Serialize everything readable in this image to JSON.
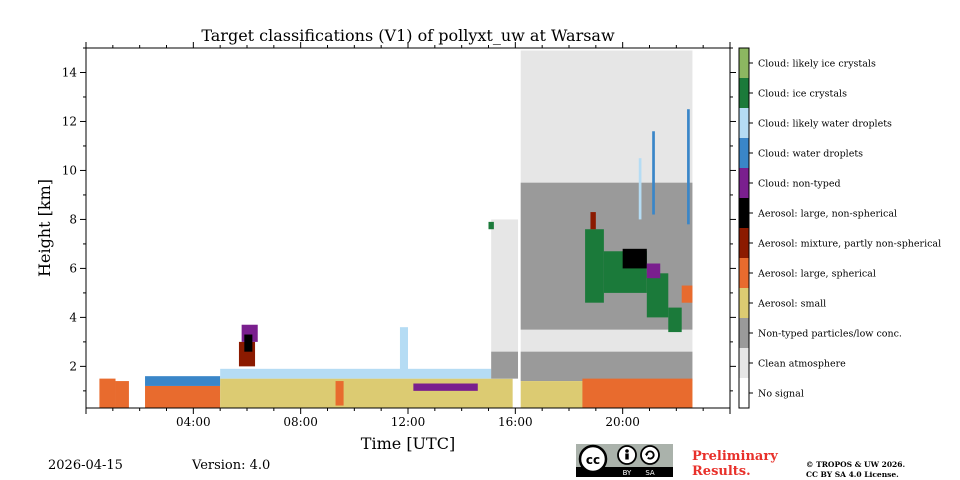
{
  "chart_data": {
    "type": "heatmap",
    "title": "Target classifications (V1) of pollyxt_uw at Warsaw",
    "xlabel": "Time [UTC]",
    "ylabel": "Height [km]",
    "xlim": [
      0,
      24
    ],
    "ylim": [
      0.3,
      15
    ],
    "x_ticks": [
      {
        "value": 4,
        "label": "04:00"
      },
      {
        "value": 8,
        "label": "08:00"
      },
      {
        "value": 12,
        "label": "12:00"
      },
      {
        "value": 16,
        "label": "16:00"
      },
      {
        "value": 20,
        "label": "20:00"
      }
    ],
    "y_ticks": [
      {
        "value": 2,
        "label": "2"
      },
      {
        "value": 4,
        "label": "4"
      },
      {
        "value": 6,
        "label": "6"
      },
      {
        "value": 8,
        "label": "8"
      },
      {
        "value": 10,
        "label": "10"
      },
      {
        "value": 12,
        "label": "12"
      },
      {
        "value": 14,
        "label": "14"
      }
    ],
    "classes": [
      {
        "label": "Cloud: likely ice crystals",
        "color": "#8cb761"
      },
      {
        "label": "Cloud: ice crystals",
        "color": "#1b7a3a"
      },
      {
        "label": "Cloud: likely water droplets",
        "color": "#b5dcf4"
      },
      {
        "label": "Cloud: water droplets",
        "color": "#3a86c8"
      },
      {
        "label": "Cloud: non-typed",
        "color": "#7a1f8e"
      },
      {
        "label": "Aerosol: large, non-spherical",
        "color": "#000000"
      },
      {
        "label": "Aerosol: mixture, partly non-spherical",
        "color": "#8b1a00"
      },
      {
        "label": "Aerosol: large, spherical",
        "color": "#e86b2e"
      },
      {
        "label": "Aerosol: small",
        "color": "#dccb72"
      },
      {
        "label": "Non-typed particles/low conc.",
        "color": "#9a9a9a"
      },
      {
        "label": "Clean atmosphere",
        "color": "#e6e6e6"
      },
      {
        "label": "No signal",
        "color": "#ffffff"
      }
    ],
    "regions": [
      {
        "cls": "Aerosol: large, spherical",
        "t0": 0.5,
        "t1": 1.1,
        "h0": 0.3,
        "h1": 1.5
      },
      {
        "cls": "Aerosol: large, spherical",
        "t0": 1.1,
        "t1": 1.6,
        "h0": 0.3,
        "h1": 1.4
      },
      {
        "cls": "Aerosol: large, spherical",
        "t0": 2.2,
        "t1": 5.0,
        "h0": 0.3,
        "h1": 1.2
      },
      {
        "cls": "Cloud: water droplets",
        "t0": 2.2,
        "t1": 5.0,
        "h0": 1.2,
        "h1": 1.6
      },
      {
        "cls": "Aerosol: small",
        "t0": 5.0,
        "t1": 15.9,
        "h0": 0.3,
        "h1": 1.5
      },
      {
        "cls": "Cloud: likely water droplets",
        "t0": 5.0,
        "t1": 15.9,
        "h0": 1.5,
        "h1": 1.9
      },
      {
        "cls": "Aerosol: large, spherical",
        "t0": 9.3,
        "t1": 9.6,
        "h0": 0.4,
        "h1": 1.4
      },
      {
        "cls": "Cloud: non-typed",
        "t0": 12.2,
        "t1": 14.6,
        "h0": 1.0,
        "h1": 1.3
      },
      {
        "cls": "Aerosol: mixture, partly non-spherical",
        "t0": 5.7,
        "t1": 6.3,
        "h0": 2.0,
        "h1": 3.0
      },
      {
        "cls": "Cloud: non-typed",
        "t0": 5.8,
        "t1": 6.4,
        "h0": 3.0,
        "h1": 3.7
      },
      {
        "cls": "Aerosol: large, non-spherical",
        "t0": 5.9,
        "t1": 6.2,
        "h0": 2.6,
        "h1": 3.3
      },
      {
        "cls": "Cloud: likely water droplets",
        "t0": 11.7,
        "t1": 12.0,
        "h0": 1.7,
        "h1": 3.6
      },
      {
        "cls": "Clean atmosphere",
        "t0": 15.1,
        "t1": 16.1,
        "h0": 1.5,
        "h1": 8.0
      },
      {
        "cls": "Non-typed particles/low conc.",
        "t0": 15.1,
        "t1": 16.1,
        "h0": 1.5,
        "h1": 2.6
      },
      {
        "cls": "Cloud: ice crystals",
        "t0": 15.0,
        "t1": 15.2,
        "h0": 7.6,
        "h1": 7.9
      },
      {
        "cls": "Clean atmosphere",
        "t0": 16.2,
        "t1": 22.6,
        "h0": 1.4,
        "h1": 14.9
      },
      {
        "cls": "Non-typed particles/low conc.",
        "t0": 16.2,
        "t1": 22.6,
        "h0": 1.4,
        "h1": 2.6
      },
      {
        "cls": "Non-typed particles/low conc.",
        "t0": 16.2,
        "t1": 22.6,
        "h0": 3.5,
        "h1": 9.5
      },
      {
        "cls": "Aerosol: small",
        "t0": 16.2,
        "t1": 22.6,
        "h0": 0.3,
        "h1": 1.4
      },
      {
        "cls": "Aerosol: large, spherical",
        "t0": 18.5,
        "t1": 22.6,
        "h0": 0.3,
        "h1": 1.5
      },
      {
        "cls": "Cloud: ice crystals",
        "t0": 18.6,
        "t1": 19.3,
        "h0": 4.6,
        "h1": 7.6
      },
      {
        "cls": "Cloud: ice crystals",
        "t0": 19.3,
        "t1": 20.9,
        "h0": 5.0,
        "h1": 6.7
      },
      {
        "cls": "Cloud: ice crystals",
        "t0": 20.9,
        "t1": 21.7,
        "h0": 4.0,
        "h1": 5.8
      },
      {
        "cls": "Cloud: ice crystals",
        "t0": 21.7,
        "t1": 22.2,
        "h0": 3.4,
        "h1": 4.4
      },
      {
        "cls": "Aerosol: large, non-spherical",
        "t0": 20.0,
        "t1": 20.9,
        "h0": 6.0,
        "h1": 6.8
      },
      {
        "cls": "Aerosol: mixture, partly non-spherical",
        "t0": 18.8,
        "t1": 19.0,
        "h0": 7.6,
        "h1": 8.3
      },
      {
        "cls": "Cloud: non-typed",
        "t0": 20.9,
        "t1": 21.4,
        "h0": 5.6,
        "h1": 6.2
      },
      {
        "cls": "Aerosol: large, spherical",
        "t0": 22.2,
        "t1": 22.6,
        "h0": 4.6,
        "h1": 5.3
      },
      {
        "cls": "Cloud: water droplets",
        "t0": 22.4,
        "t1": 22.5,
        "h0": 7.8,
        "h1": 12.5
      },
      {
        "cls": "Cloud: water droplets",
        "t0": 21.1,
        "t1": 21.2,
        "h0": 8.2,
        "h1": 11.6
      },
      {
        "cls": "Cloud: likely water droplets",
        "t0": 20.6,
        "t1": 20.7,
        "h0": 8.0,
        "h1": 10.5
      }
    ]
  },
  "footer": {
    "date": "2026-04-15",
    "version": "Version: 4.0",
    "cc_by": "BY",
    "cc_sa": "SA",
    "preliminary_line1": "Preliminary",
    "preliminary_line2": "Results.",
    "copyright_line1": "© TROPOS & UW 2026.",
    "copyright_line2": "CC BY SA 4.0 License."
  }
}
